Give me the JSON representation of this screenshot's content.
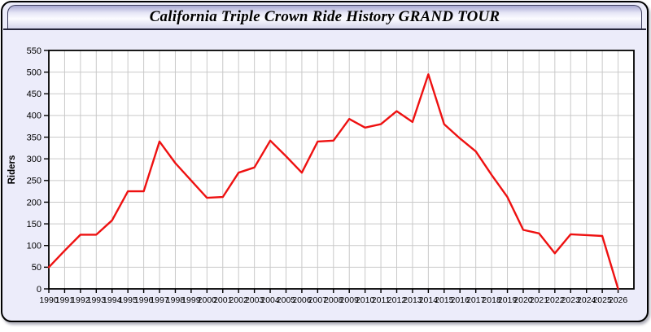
{
  "window": {
    "title": "California Triple Crown Ride History GRAND TOUR"
  },
  "colors": {
    "line": "#ee1111",
    "window_bg": "#ececfa",
    "plot_bg": "#ffffff",
    "grid": "#c9c9c9",
    "axis": "#000000"
  },
  "chart_data": {
    "type": "line",
    "title": "California Triple Crown Ride History GRAND TOUR",
    "xlabel": "",
    "ylabel": "Riders",
    "xlim": [
      1990,
      2027
    ],
    "ylim": [
      0,
      550
    ],
    "y_tick_step": 50,
    "grid": true,
    "legend": "none",
    "x": [
      1990,
      1991,
      1992,
      1993,
      1994,
      1995,
      1996,
      1997,
      1998,
      1999,
      2000,
      2001,
      2002,
      2003,
      2004,
      2005,
      2006,
      2007,
      2008,
      2009,
      2010,
      2011,
      2012,
      2013,
      2014,
      2015,
      2016,
      2017,
      2018,
      2019,
      2020,
      2021,
      2022,
      2023,
      2024,
      2025,
      2026
    ],
    "x_tick_labels": [
      "1990",
      "1991",
      "1992",
      "1993",
      "1994",
      "1995",
      "1996",
      "1997",
      "1998",
      "1999",
      "2000",
      "2001",
      "2002",
      "2003",
      "2004",
      "2005",
      "2006",
      "2007",
      "2008",
      "2009",
      "2010",
      "2011",
      "2012",
      "2013",
      "2014",
      "2015",
      "2016",
      "2017",
      "2018",
      "2019",
      "2020",
      "2021",
      "2022",
      "2023",
      "2024",
      "2025",
      "2026"
    ],
    "y_tick_labels": [
      "0",
      "50",
      "100",
      "150",
      "200",
      "250",
      "300",
      "350",
      "400",
      "450",
      "500",
      "550"
    ],
    "series": [
      {
        "name": "Riders",
        "color": "#ee1111",
        "values": [
          50,
          88,
          125,
          125,
          158,
          225,
          225,
          340,
          290,
          250,
          210,
          212,
          268,
          280,
          342,
          306,
          268,
          340,
          342,
          392,
          372,
          380,
          410,
          385,
          495,
          380,
          347,
          317,
          263,
          212,
          136,
          128,
          82,
          126,
          124,
          122,
          0
        ]
      }
    ]
  }
}
